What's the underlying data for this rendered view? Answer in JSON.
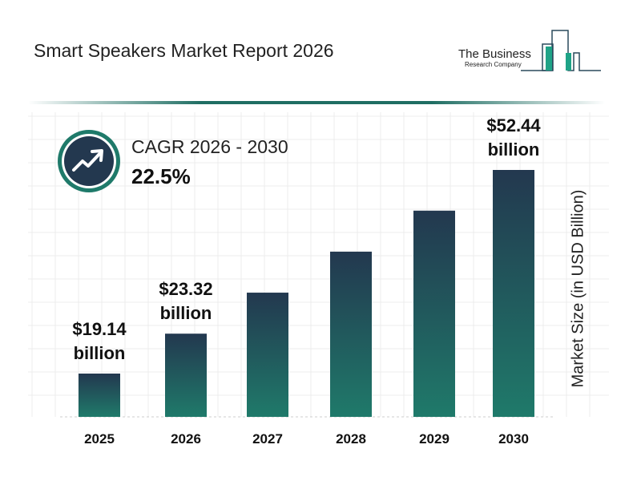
{
  "header": {
    "title": "Smart Speakers Market Report 2026",
    "logo_line1": "The Business",
    "logo_line2": "Research Company"
  },
  "cagr": {
    "label": "CAGR 2026 - 2030",
    "value": "22.5%",
    "icon": "trending-up-icon"
  },
  "chart_data": {
    "type": "bar",
    "categories": [
      "2025",
      "2026",
      "2027",
      "2028",
      "2029",
      "2030"
    ],
    "values": [
      19.14,
      23.32,
      28.57,
      35.0,
      42.87,
      52.44
    ],
    "data_labels": [
      [
        "$19.14",
        "billion"
      ],
      [
        "$23.32",
        "billion"
      ],
      null,
      null,
      null,
      [
        "$52.44",
        "billion"
      ]
    ],
    "ylabel": "Market Size (in USD Billion)",
    "xlabel": "",
    "grid": true,
    "colors": {
      "bar_top": "#23384f",
      "bar_bottom": "#1f7a6a",
      "accent": "#1f7a6a"
    }
  }
}
